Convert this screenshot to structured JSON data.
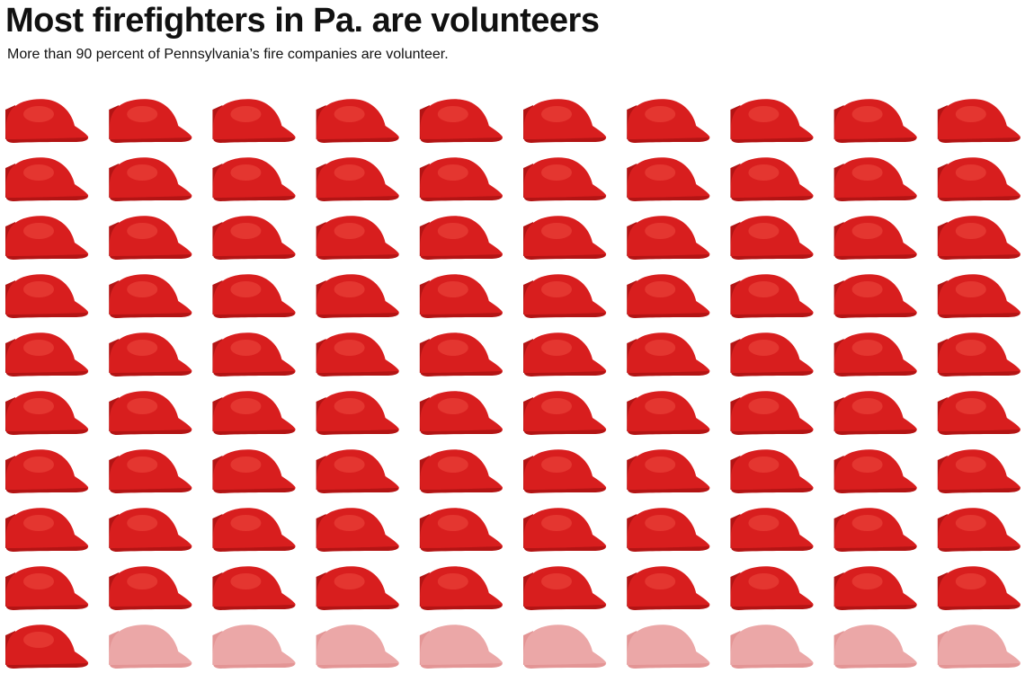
{
  "header": {
    "title": "Most firefighters in Pa. are volunteers",
    "subtitle": "More than 90 percent of Pennsylvania’s fire companies are volunteer."
  },
  "chart_data": {
    "type": "pictogram",
    "icon": "fire-helmet-icon",
    "total": 100,
    "highlighted": 91,
    "columns": 10,
    "rows": 10,
    "colors": {
      "highlighted": "#d81e1e",
      "highlighted_dark": "#b31414",
      "highlighted_light": "#ef4a3f",
      "faded": "#eba7a7",
      "faded_dark": "#e39595"
    }
  }
}
